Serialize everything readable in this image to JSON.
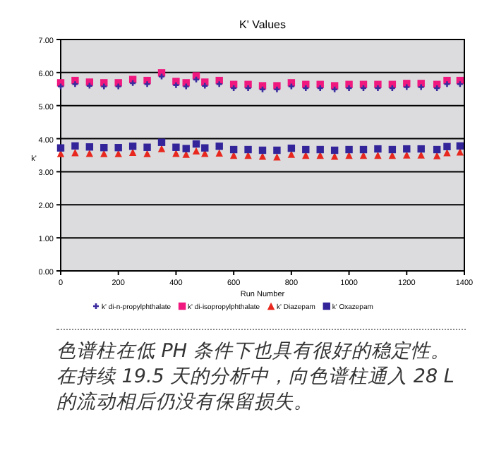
{
  "chart_data": {
    "type": "scatter",
    "title": "K' Values",
    "xlabel": "Run Number",
    "ylabel": "k'",
    "x": [
      0,
      50,
      100,
      150,
      200,
      250,
      300,
      350,
      400,
      435,
      470,
      500,
      550,
      600,
      650,
      700,
      750,
      800,
      850,
      900,
      950,
      1000,
      1050,
      1100,
      1150,
      1200,
      1250,
      1305,
      1340,
      1385
    ],
    "series": [
      {
        "name": "k' di-n-propylphthalate",
        "color": "#3b2c9e",
        "marker": "cross",
        "values": [
          5.58,
          5.65,
          5.6,
          5.58,
          5.58,
          5.68,
          5.65,
          5.88,
          5.62,
          5.58,
          5.79,
          5.6,
          5.65,
          5.53,
          5.53,
          5.49,
          5.49,
          5.58,
          5.53,
          5.53,
          5.49,
          5.53,
          5.53,
          5.53,
          5.53,
          5.56,
          5.56,
          5.53,
          5.65,
          5.65
        ]
      },
      {
        "name": "k' di-isopropylphthalate",
        "color": "#f0187f",
        "marker": "square",
        "values": [
          5.69,
          5.76,
          5.71,
          5.69,
          5.69,
          5.79,
          5.76,
          5.99,
          5.73,
          5.69,
          5.9,
          5.71,
          5.76,
          5.64,
          5.64,
          5.6,
          5.6,
          5.69,
          5.64,
          5.64,
          5.6,
          5.64,
          5.64,
          5.64,
          5.64,
          5.67,
          5.67,
          5.64,
          5.76,
          5.76
        ]
      },
      {
        "name": "k' Diazepam",
        "color": "#e8281e",
        "marker": "triangle",
        "values": [
          3.55,
          3.58,
          3.56,
          3.55,
          3.55,
          3.59,
          3.55,
          3.7,
          3.56,
          3.53,
          3.63,
          3.56,
          3.57,
          3.5,
          3.5,
          3.47,
          3.45,
          3.53,
          3.5,
          3.5,
          3.47,
          3.5,
          3.5,
          3.5,
          3.5,
          3.51,
          3.51,
          3.49,
          3.58,
          3.6
        ]
      },
      {
        "name": "k' Oxazepam",
        "color": "#33249a",
        "marker": "square",
        "values": [
          3.72,
          3.78,
          3.75,
          3.73,
          3.73,
          3.77,
          3.74,
          3.89,
          3.74,
          3.7,
          3.84,
          3.72,
          3.77,
          3.67,
          3.67,
          3.65,
          3.65,
          3.71,
          3.67,
          3.67,
          3.65,
          3.67,
          3.67,
          3.69,
          3.67,
          3.69,
          3.69,
          3.67,
          3.76,
          3.78
        ]
      }
    ],
    "xlim": [
      0,
      1400
    ],
    "xticks": [
      0,
      200,
      400,
      600,
      800,
      1000,
      1200,
      1400
    ],
    "ylim": [
      0,
      7
    ],
    "yticks": [
      {
        "value": 0,
        "label": "0.00"
      },
      {
        "value": 1,
        "label": "1.00"
      },
      {
        "value": 2,
        "label": "2.00"
      },
      {
        "value": 3,
        "label": "3.00"
      },
      {
        "value": 4,
        "label": "4.00"
      },
      {
        "value": 5,
        "label": "5.00"
      },
      {
        "value": 6,
        "label": "6.00"
      },
      {
        "value": 7,
        "label": "7.00"
      }
    ],
    "grid": "y",
    "legend": "bottom",
    "annotations": [
      "色谱柱在低 PH 条件下也具有很好的稳定性。在持续 19.5 天的分析中，向色谱柱通入 28 L 的流动相后仍没有保留损失。"
    ]
  }
}
